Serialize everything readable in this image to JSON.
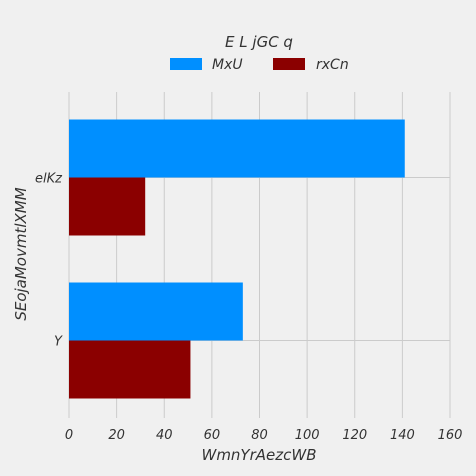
{
  "chart_data": {
    "type": "bar",
    "orientation": "horizontal",
    "title": "",
    "xlabel": "WmnYrAezcWB",
    "ylabel": "SEojaMovmtlXMM",
    "categories": [
      "Y",
      "elKz"
    ],
    "series": [
      {
        "name": "MxU",
        "color": "#008fff",
        "values": [
          73,
          141
        ]
      },
      {
        "name": "rxCn",
        "color": "#8b0000",
        "values": [
          51,
          32
        ]
      }
    ],
    "xlim": [
      0,
      160
    ],
    "xticks": [
      0,
      20,
      40,
      60,
      80,
      100,
      120,
      140,
      160
    ],
    "legend": {
      "title": "E L jGC   q",
      "position": "top"
    },
    "grid": true
  }
}
